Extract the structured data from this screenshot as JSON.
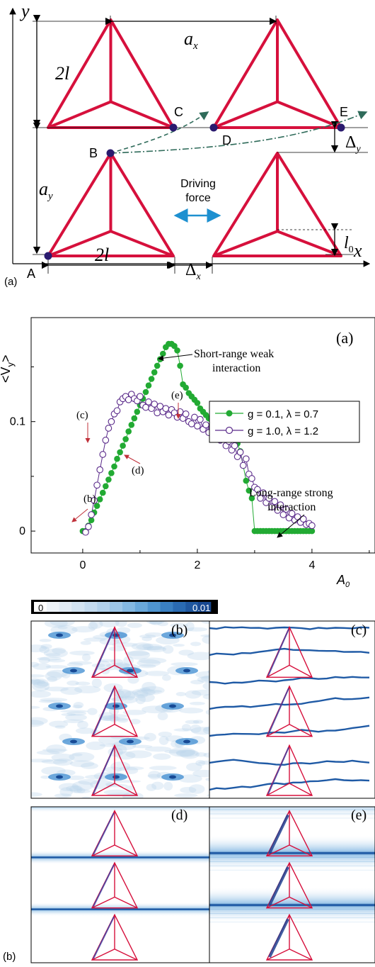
{
  "figure": {
    "panel_a": {
      "label": "(a)",
      "axis_x": "x",
      "axis_y": "y",
      "point_labels": [
        "A",
        "B",
        "C",
        "D",
        "E"
      ],
      "dim_2l_left": "2l",
      "dim_2l_bottom": "2l",
      "dim_ax": "a",
      "dim_ax_sub": "x",
      "dim_ay": "a",
      "dim_ay_sub": "y",
      "dim_dx": "Δ",
      "dim_dx_sub": "x",
      "dim_dy": "Δ",
      "dim_dy_sub": "y",
      "dim_l0": "l",
      "dim_l0_sub": "0",
      "driving_force_line1": "Driving",
      "driving_force_line2": "force",
      "colors": {
        "triangle": "#d6103c",
        "dot": "#2a1a6e",
        "arrow": "#2f6b5a",
        "force": "#1e90d0"
      }
    },
    "panel_b": {
      "label": "(b)",
      "colorbar_min": "0",
      "colorbar_max": "0.01",
      "subpanels": [
        "(b)",
        "(c)",
        "(d)",
        "(e)"
      ]
    }
  },
  "chart_data": {
    "type": "scatter",
    "panel_label": "(a)",
    "ylabel": "<V_y>",
    "ylabel_main": "<V",
    "ylabel_sub": "y",
    "ylabel_tail": ">",
    "xlabel": "A_0",
    "xlabel_main": "A",
    "xlabel_sub": "0",
    "xlim": [
      -0.9,
      5.1
    ],
    "ylim": [
      -0.02,
      0.195
    ],
    "x_ticks": [
      "0",
      "2",
      "4"
    ],
    "y_ticks": [
      "0",
      "0.1"
    ],
    "annotations": {
      "short_range_1": "Short-range weak",
      "short_range_2": "interaction",
      "long_range_1": "Long-range strong",
      "long_range_2": "interaction",
      "markers": [
        "(b)",
        "(c)",
        "(d)",
        "(e)"
      ]
    },
    "series": [
      {
        "name": "g = 0.1, λ = 0.7",
        "color": "#22aa33",
        "marker": "filled",
        "x": [
          0.0,
          0.05,
          0.1,
          0.15,
          0.2,
          0.25,
          0.3,
          0.35,
          0.4,
          0.45,
          0.5,
          0.55,
          0.6,
          0.65,
          0.7,
          0.75,
          0.8,
          0.85,
          0.9,
          0.95,
          1.0,
          1.05,
          1.1,
          1.15,
          1.2,
          1.25,
          1.3,
          1.35,
          1.4,
          1.45,
          1.5,
          1.55,
          1.6,
          1.65,
          1.7,
          1.75,
          1.8,
          1.85,
          1.9,
          1.95,
          2.0,
          2.05,
          2.1,
          2.15,
          2.2,
          2.25,
          2.3,
          2.35,
          2.4,
          2.45,
          2.5,
          2.55,
          2.6,
          2.65,
          2.7,
          2.75,
          2.8,
          2.85,
          2.9,
          2.95,
          3.0,
          3.05,
          3.1,
          3.15,
          3.2,
          3.25,
          3.3,
          3.35,
          3.4,
          3.45,
          3.5,
          3.55,
          3.6,
          3.65,
          3.7,
          3.75,
          3.8,
          3.85,
          3.9,
          3.95,
          4.0
        ],
        "y": [
          0.0,
          0.0,
          0.005,
          0.01,
          0.017,
          0.023,
          0.029,
          0.035,
          0.041,
          0.047,
          0.053,
          0.059,
          0.066,
          0.072,
          0.078,
          0.084,
          0.091,
          0.097,
          0.103,
          0.109,
          0.115,
          0.121,
          0.127,
          0.133,
          0.139,
          0.145,
          0.151,
          0.157,
          0.162,
          0.168,
          0.171,
          0.171,
          0.169,
          0.165,
          0.151,
          0.134,
          0.131,
          0.126,
          0.123,
          0.12,
          0.117,
          0.112,
          0.109,
          0.106,
          0.103,
          0.101,
          0.099,
          0.097,
          0.095,
          0.093,
          0.09,
          0.088,
          0.086,
          0.084,
          0.08,
          0.073,
          0.06,
          0.046,
          0.037,
          0.03,
          0.0,
          0.0,
          0.0,
          0.0,
          0.0,
          0.0,
          0.0,
          0.0,
          0.0,
          0.0,
          0.0,
          0.0,
          0.0,
          0.0,
          0.0,
          0.0,
          0.0,
          0.0,
          0.0,
          0.0,
          0.0
        ]
      },
      {
        "name": "g = 1.0, λ = 1.2",
        "color": "#5a2a8a",
        "marker": "open",
        "x": [
          0.05,
          0.1,
          0.15,
          0.2,
          0.25,
          0.3,
          0.35,
          0.4,
          0.45,
          0.5,
          0.55,
          0.6,
          0.65,
          0.7,
          0.75,
          0.8,
          0.85,
          0.9,
          0.95,
          1.0,
          1.05,
          1.1,
          1.15,
          1.2,
          1.25,
          1.3,
          1.35,
          1.4,
          1.45,
          1.5,
          1.55,
          1.6,
          1.65,
          1.7,
          1.75,
          1.8,
          1.85,
          1.9,
          1.95,
          2.0,
          2.05,
          2.1,
          2.15,
          2.2,
          2.25,
          2.3,
          2.35,
          2.4,
          2.45,
          2.5,
          2.55,
          2.6,
          2.65,
          2.7,
          2.75,
          2.8,
          2.85,
          2.9,
          2.95,
          3.0,
          3.05,
          3.1,
          3.15,
          3.2,
          3.25,
          3.3,
          3.35,
          3.4,
          3.45,
          3.5,
          3.55,
          3.6,
          3.65,
          3.7,
          3.75,
          3.8,
          3.85,
          3.9,
          3.95,
          4.0
        ],
        "y": [
          -0.001,
          0.004,
          0.015,
          0.028,
          0.042,
          0.056,
          0.07,
          0.083,
          0.094,
          0.1,
          0.107,
          0.11,
          0.118,
          0.121,
          0.123,
          0.12,
          0.125,
          0.121,
          0.119,
          0.123,
          0.115,
          0.113,
          0.118,
          0.112,
          0.116,
          0.108,
          0.114,
          0.109,
          0.112,
          0.106,
          0.111,
          0.108,
          0.104,
          0.109,
          0.103,
          0.107,
          0.1,
          0.098,
          0.104,
          0.096,
          0.102,
          0.093,
          0.097,
          0.09,
          0.094,
          0.086,
          0.092,
          0.083,
          0.087,
          0.078,
          0.082,
          0.074,
          0.078,
          0.068,
          0.072,
          0.06,
          0.066,
          0.052,
          0.048,
          0.04,
          0.038,
          0.03,
          0.035,
          0.026,
          0.03,
          0.022,
          0.027,
          0.019,
          0.024,
          0.015,
          0.02,
          0.012,
          0.016,
          0.01,
          0.013,
          0.008,
          0.011,
          0.006,
          0.007,
          0.005
        ]
      }
    ]
  }
}
